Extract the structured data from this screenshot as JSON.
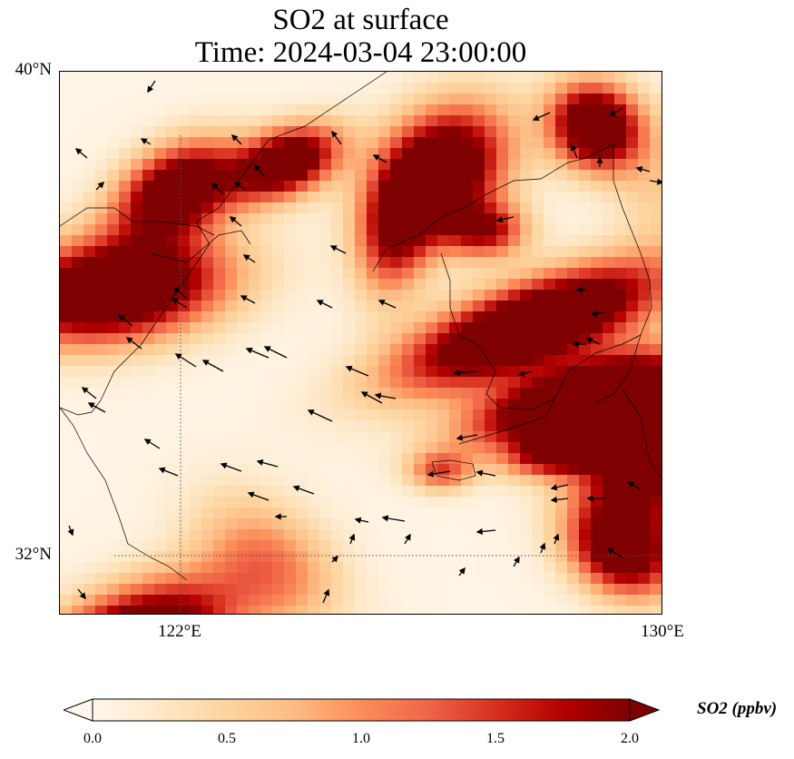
{
  "title": {
    "line1": "SO2 at surface",
    "line2": "Time: 2024-03-04 23:00:00"
  },
  "axes": {
    "lat_labels": [
      "40°N",
      "32°N"
    ],
    "lon_labels": [
      "122°E",
      "130°E"
    ],
    "lat_range": [
      31,
      40
    ],
    "lon_range": [
      120,
      130
    ],
    "gridlines": "dotted"
  },
  "colorbar": {
    "label": "SO2 (ppbv)",
    "ticks": [
      "0.0",
      "0.5",
      "1.0",
      "1.5",
      "2.0"
    ],
    "range": [
      0,
      2
    ],
    "extend": "both",
    "colormap": "OrRd",
    "colors": [
      "#fff7ec",
      "#fee8c8",
      "#fdd49e",
      "#fdbb84",
      "#fc8d59",
      "#ef6548",
      "#d7301f",
      "#b30000",
      "#7f0000"
    ]
  },
  "chart_data": {
    "type": "heatmap",
    "title": "SO2 at surface",
    "subtitle": "Time: 2024-03-04 23:00:00",
    "variable": "SO2 (ppbv)",
    "overlay": "wind vectors",
    "xlabel": "",
    "ylabel": ""
  }
}
